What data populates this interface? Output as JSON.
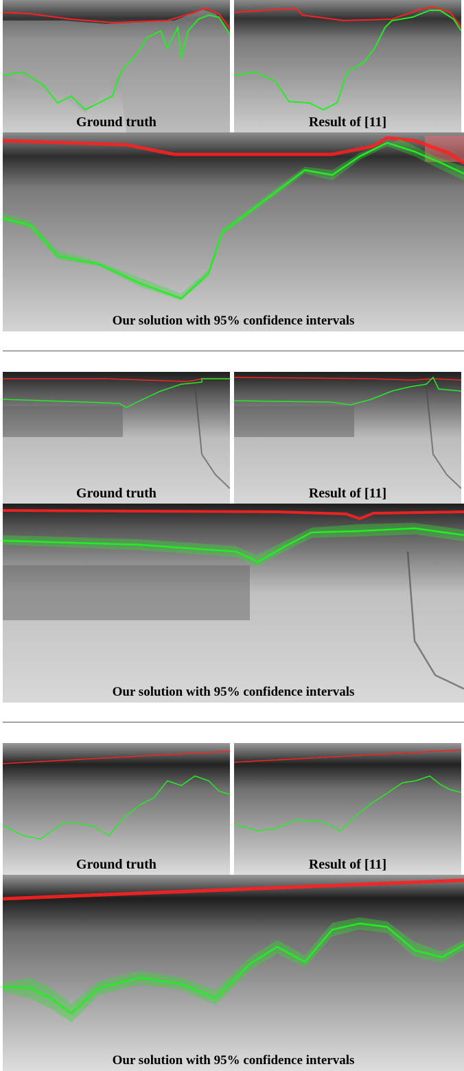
{
  "figure_groups": [
    {
      "ground_truth": "Ground truth",
      "result_11": "Result of [11]",
      "our_solution": "Our solution with 95% confidence intervals"
    },
    {
      "ground_truth": "Ground truth",
      "result_11": "Result of [11]",
      "our_solution": "Our solution with 95% confidence intervals"
    },
    {
      "ground_truth": "Ground truth",
      "result_11": "Result of [11]",
      "our_solution": "Our solution with 95% confidence intervals"
    }
  ],
  "colors": {
    "surface_line": "#ff1a1a",
    "bottom_line": "#22ee22",
    "confidence_fill": "#33dd33",
    "radargram_dark": "#2a2a2a",
    "radargram_light": "#d8d8d8"
  }
}
